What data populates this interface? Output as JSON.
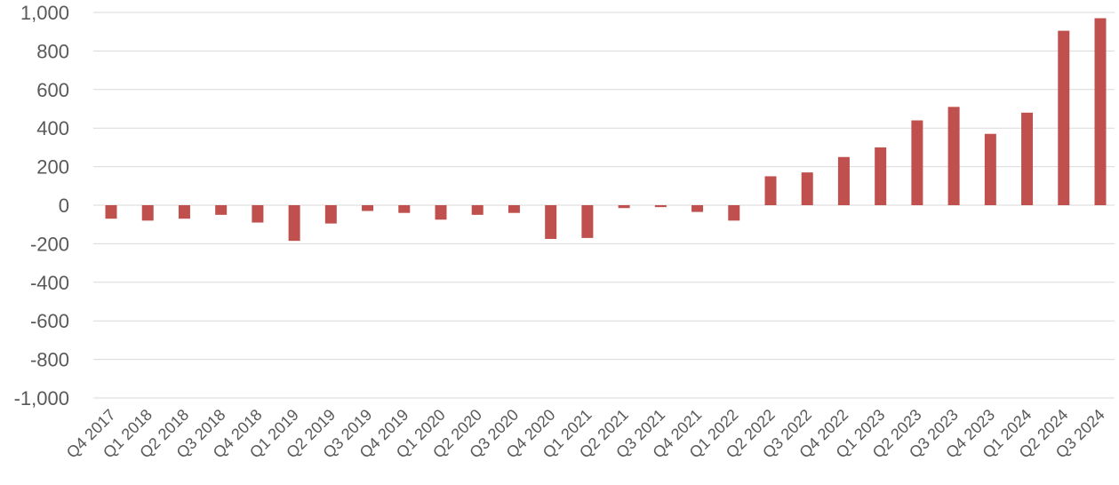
{
  "chart_data": {
    "type": "bar",
    "categories": [
      "Q4 2017",
      "Q1 2018",
      "Q2 2018",
      "Q3 2018",
      "Q4 2018",
      "Q1 2019",
      "Q2 2019",
      "Q3 2019",
      "Q4 2019",
      "Q1 2020",
      "Q2 2020",
      "Q3 2020",
      "Q4 2020",
      "Q1 2021",
      "Q2 2021",
      "Q3 2021",
      "Q4 2021",
      "Q1 2022",
      "Q2 2022",
      "Q3 2022",
      "Q4 2022",
      "Q1 2023",
      "Q2 2023",
      "Q3 2023",
      "Q4 2023",
      "Q1 2024",
      "Q2 2024",
      "Q3 2024"
    ],
    "values": [
      -70,
      -80,
      -70,
      -50,
      -90,
      -185,
      -95,
      -30,
      -40,
      -75,
      -50,
      -40,
      -175,
      -170,
      -15,
      -10,
      -35,
      -80,
      150,
      170,
      250,
      300,
      440,
      510,
      370,
      480,
      905,
      970
    ],
    "yticks": [
      "1,000",
      "800",
      "600",
      "400",
      "200",
      "0",
      "-200",
      "-400",
      "-600",
      "-800",
      "-1,000"
    ],
    "ylim": [
      -1000,
      1000
    ],
    "title": "",
    "xlabel": "",
    "ylabel": "",
    "grid": true,
    "bar_color": "#c0504d"
  }
}
